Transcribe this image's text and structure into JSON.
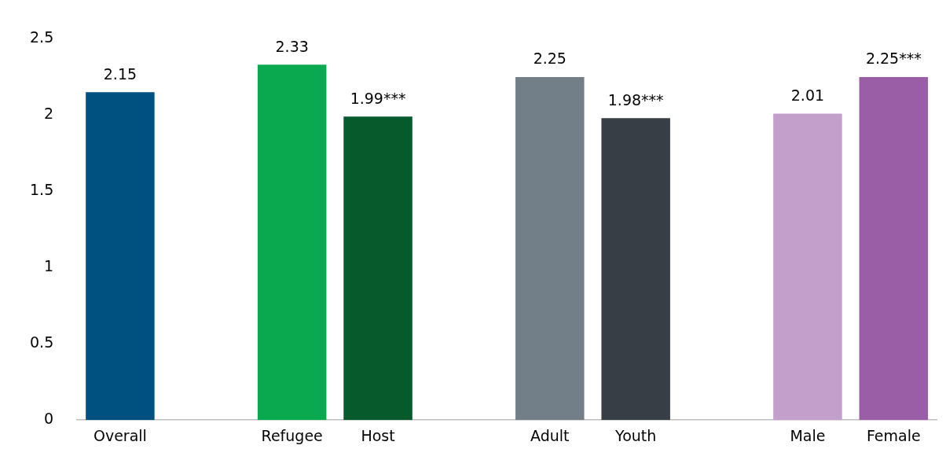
{
  "chart_data": {
    "type": "bar",
    "categories": [
      "Overall",
      null,
      "Refugee",
      "Host",
      null,
      "Adult",
      "Youth",
      null,
      "Male",
      "Female"
    ],
    "values": [
      2.15,
      null,
      2.33,
      1.99,
      null,
      2.25,
      1.98,
      null,
      2.01,
      2.25
    ],
    "colors": [
      "#00517f",
      "#ffffff",
      "#0aa84f",
      "#065a2b",
      "#ffffff",
      "#737f88",
      "#373e46",
      "#ffffff",
      "#c39fcc",
      "#9a5ea6"
    ],
    "value_labels": [
      "2.15",
      null,
      "2.33",
      "1.99***",
      null,
      "2.25",
      "1.98***",
      null,
      "2.01",
      "2.25***"
    ],
    "ylim": [
      0,
      2.5
    ],
    "yticks": [
      0,
      0.5,
      1,
      1.5,
      2,
      2.5
    ],
    "grid": false,
    "legend": false
  }
}
